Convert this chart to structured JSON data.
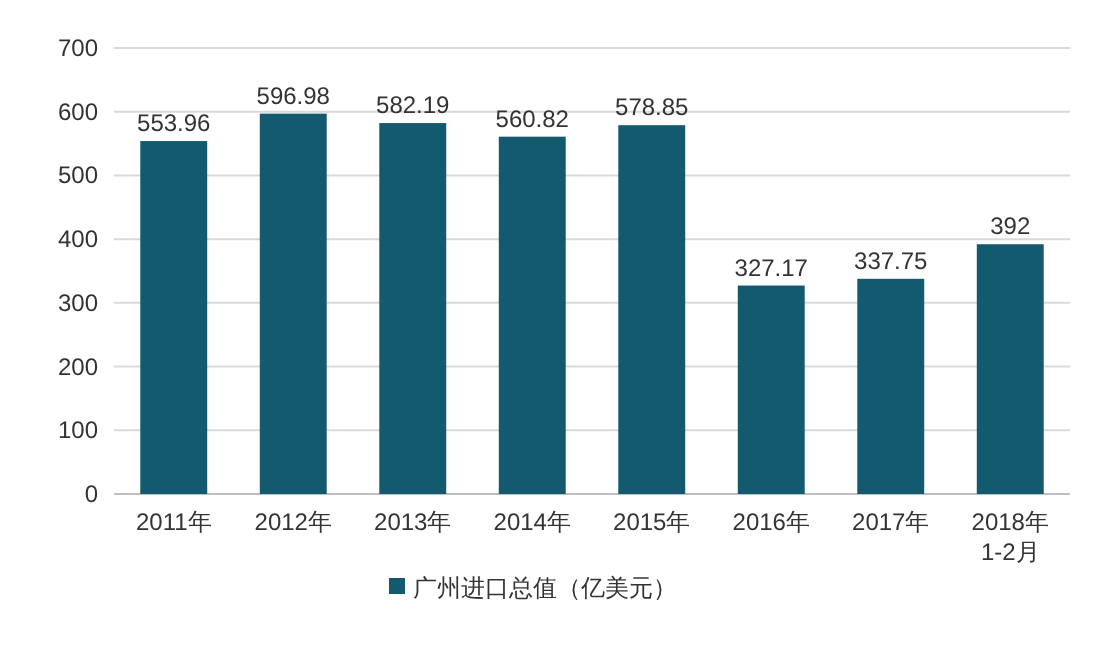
{
  "chart_data": {
    "type": "bar",
    "categories": [
      "2011年",
      "2012年",
      "2013年",
      "2014年",
      "2015年",
      "2016年",
      "2017年",
      "2018年\n1-2月"
    ],
    "series": [
      {
        "name": "广州进口总值（亿美元）",
        "color": "#135a6e",
        "values": [
          553.96,
          596.98,
          582.19,
          560.82,
          578.85,
          327.17,
          337.75,
          392
        ]
      }
    ],
    "ylim": [
      0,
      700
    ],
    "yticks": [
      0,
      100,
      200,
      300,
      400,
      500,
      600,
      700
    ],
    "grid": "y",
    "legend": "bottom",
    "data_labels": true
  }
}
